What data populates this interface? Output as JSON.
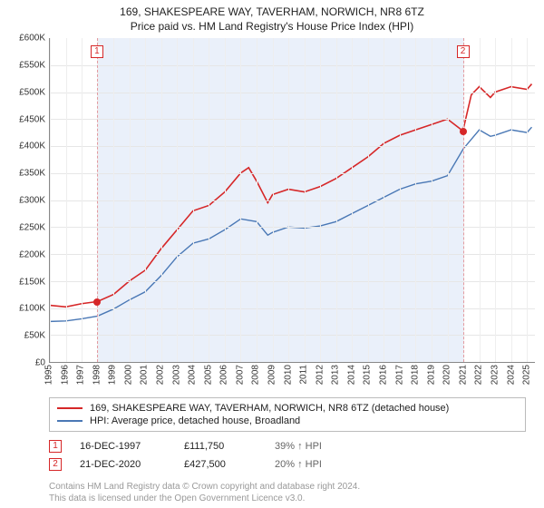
{
  "header": {
    "title": "169, SHAKESPEARE WAY, TAVERHAM, NORWICH, NR8 6TZ",
    "subtitle": "Price paid vs. HM Land Registry's House Price Index (HPI)"
  },
  "chart": {
    "type": "line",
    "background_color": "#ffffff",
    "grid_color": "#e6e6e6",
    "grid_color_v": "#eeeeee",
    "axis_color": "#888888",
    "shade_color": "#eaf0fa",
    "label_fontsize": 10,
    "x_years": [
      1995,
      1996,
      1997,
      1998,
      1999,
      2000,
      2001,
      2002,
      2003,
      2004,
      2005,
      2006,
      2007,
      2008,
      2009,
      2010,
      2011,
      2012,
      2013,
      2014,
      2015,
      2016,
      2017,
      2018,
      2019,
      2020,
      2021,
      2022,
      2023,
      2024,
      2025
    ],
    "xlim": [
      1995,
      2025.5
    ],
    "ylim": [
      0,
      600
    ],
    "ytick_step": 50,
    "y_prefix": "£",
    "y_suffix": "K",
    "shade_range": [
      1997.96,
      2020.97
    ],
    "series": [
      {
        "name": "price_paid",
        "label": "169, SHAKESPEARE WAY, TAVERHAM, NORWICH, NR8 6TZ (detached house)",
        "color": "#d62728",
        "line_width": 1.6,
        "x": [
          1995,
          1996,
          1997,
          1998,
          1999,
          2000,
          2001,
          2002,
          2003,
          2004,
          2005,
          2006,
          2007,
          2007.5,
          2008,
          2008.7,
          2009,
          2010,
          2011,
          2012,
          2013,
          2014,
          2015,
          2016,
          2017,
          2018,
          2019,
          2020,
          2020.97,
          2021.5,
          2022,
          2022.7,
          2023,
          2024,
          2025,
          2025.3
        ],
        "y": [
          105,
          102,
          108,
          112,
          125,
          150,
          170,
          210,
          245,
          280,
          290,
          315,
          350,
          360,
          335,
          295,
          310,
          320,
          315,
          325,
          340,
          360,
          380,
          405,
          420,
          430,
          440,
          450,
          428,
          495,
          510,
          490,
          500,
          510,
          505,
          515
        ]
      },
      {
        "name": "hpi",
        "label": "HPI: Average price, detached house, Broadland",
        "color": "#4a78b5",
        "line_width": 1.4,
        "x": [
          1995,
          1996,
          1997,
          1998,
          1999,
          2000,
          2001,
          2002,
          2003,
          2004,
          2005,
          2006,
          2007,
          2008,
          2008.7,
          2009,
          2010,
          2011,
          2012,
          2013,
          2014,
          2015,
          2016,
          2017,
          2018,
          2019,
          2020,
          2021,
          2022,
          2022.7,
          2023,
          2024,
          2025,
          2025.3
        ],
        "y": [
          75,
          76,
          80,
          85,
          98,
          115,
          130,
          160,
          195,
          220,
          228,
          245,
          265,
          260,
          235,
          240,
          250,
          248,
          252,
          260,
          275,
          290,
          305,
          320,
          330,
          335,
          345,
          395,
          430,
          418,
          420,
          430,
          425,
          435
        ]
      }
    ],
    "markers": [
      {
        "id": "1",
        "x": 1997.96,
        "y": 111.75,
        "color": "#d62728",
        "dot_color": "#d62728"
      },
      {
        "id": "2",
        "x": 2020.97,
        "y": 427.5,
        "color": "#d62728",
        "dot_color": "#d62728"
      }
    ],
    "dash_line_color": "#e39aa0"
  },
  "legend": {
    "items": [
      {
        "color": "#d62728",
        "label": "169, SHAKESPEARE WAY, TAVERHAM, NORWICH, NR8 6TZ (detached house)"
      },
      {
        "color": "#4a78b5",
        "label": "HPI: Average price, detached house, Broadland"
      }
    ]
  },
  "events": [
    {
      "id": "1",
      "color": "#d62728",
      "date": "16-DEC-1997",
      "price": "£111,750",
      "delta": "39% ↑ HPI"
    },
    {
      "id": "2",
      "color": "#d62728",
      "date": "21-DEC-2020",
      "price": "£427,500",
      "delta": "20% ↑ HPI"
    }
  ],
  "footer": {
    "line1": "Contains HM Land Registry data © Crown copyright and database right 2024.",
    "line2": "This data is licensed under the Open Government Licence v3.0."
  }
}
